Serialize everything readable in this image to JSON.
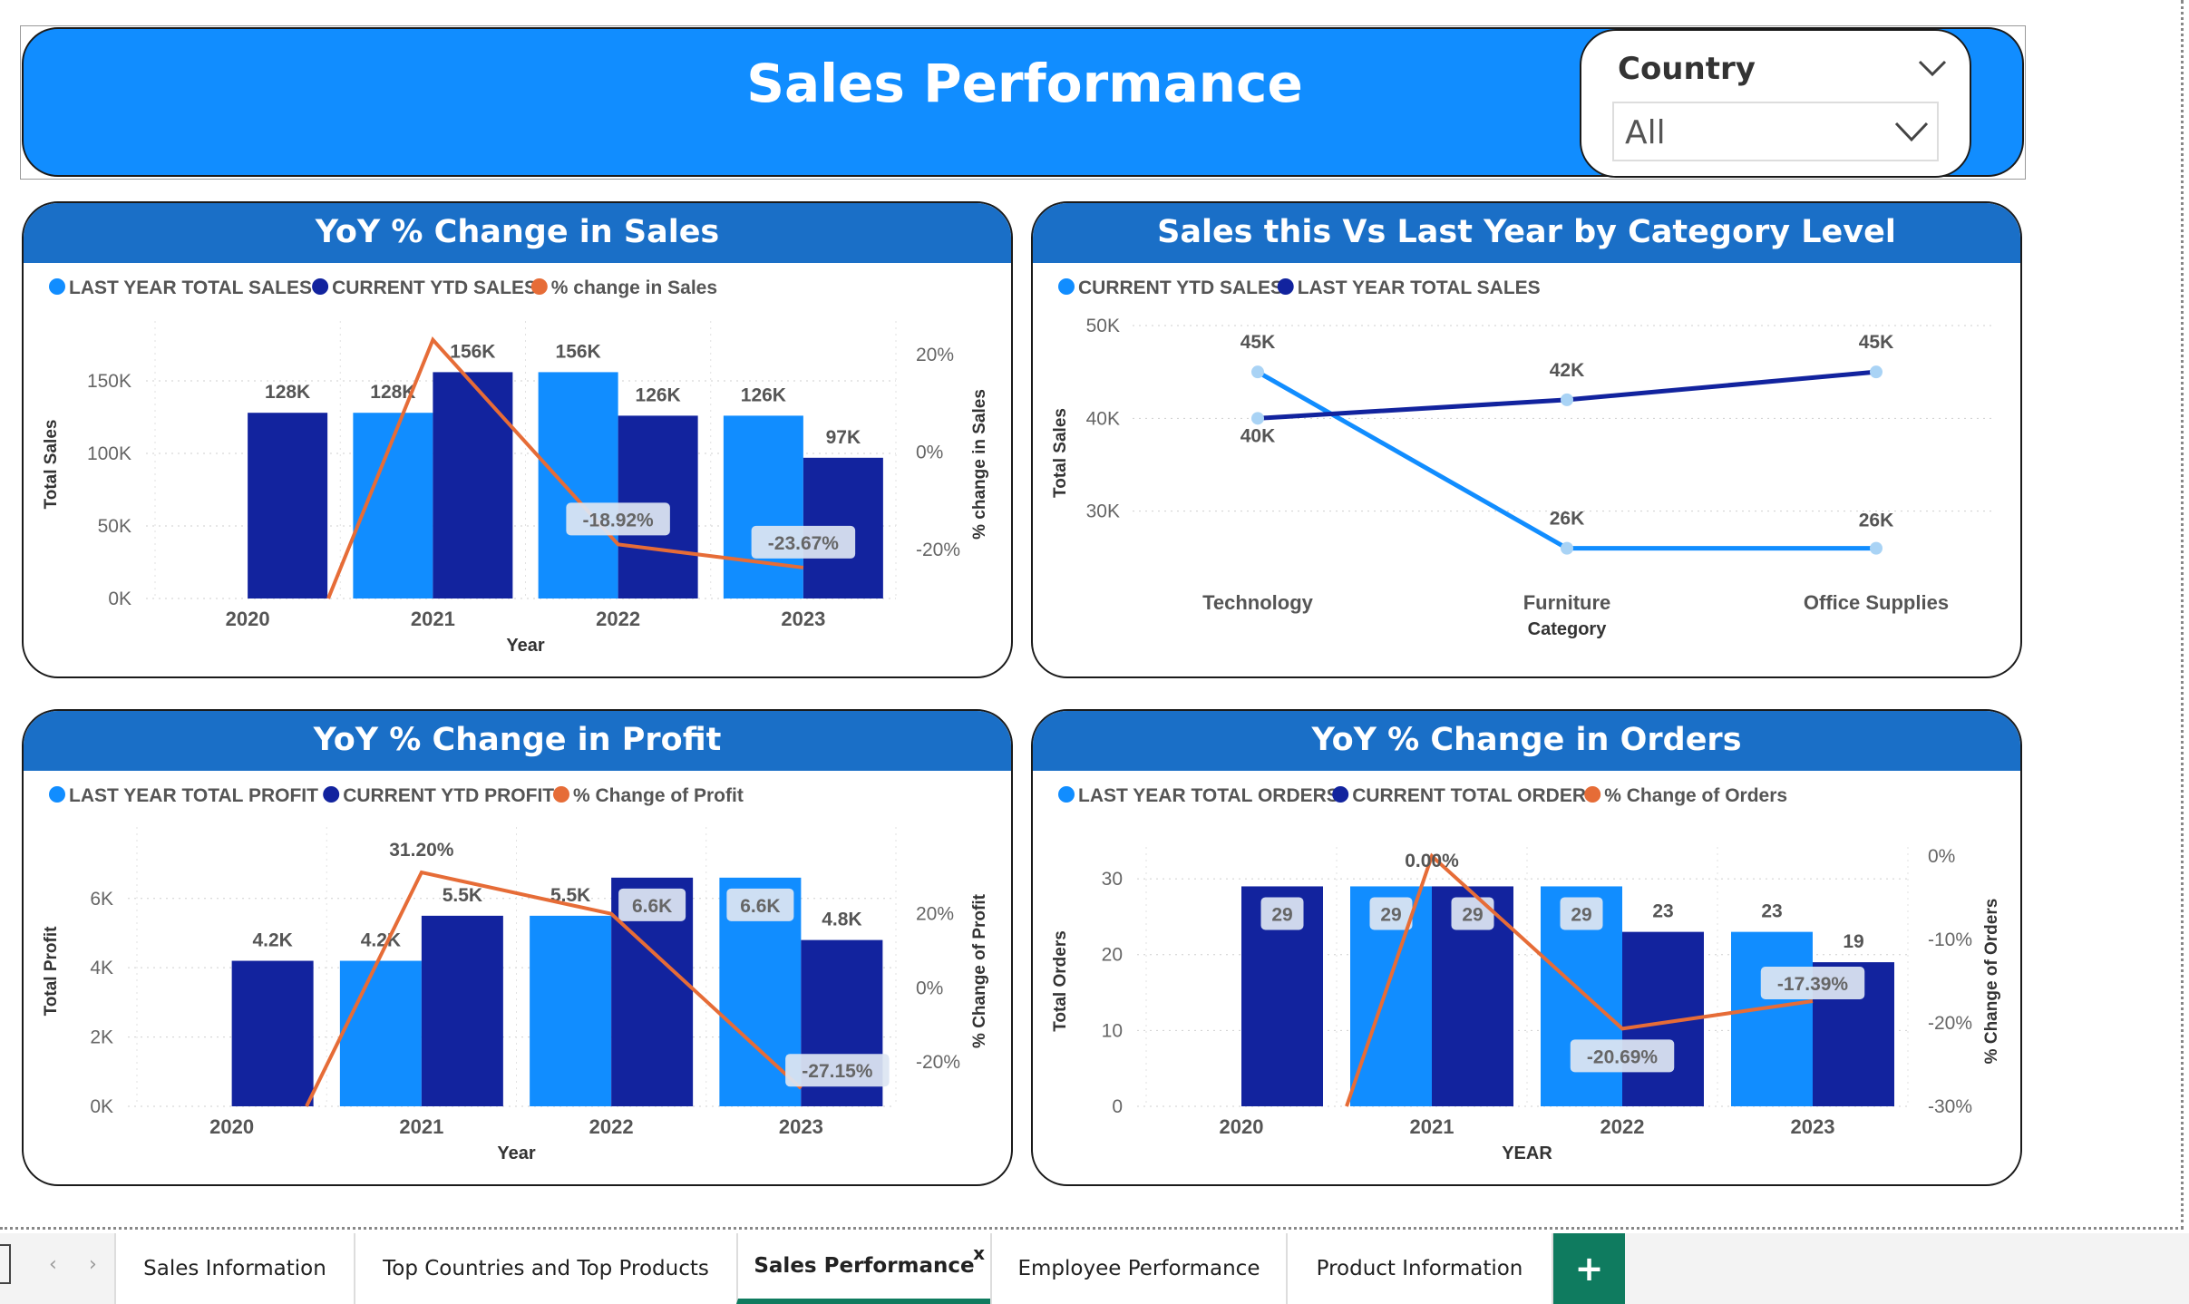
{
  "header": {
    "title": "Sales Performance"
  },
  "slicer": {
    "label": "Country",
    "value": "All"
  },
  "colors": {
    "light": "#118dff",
    "dark": "#12239e",
    "line": "#e66c37",
    "header": "#1a6fc7"
  },
  "cards": [
    {
      "title": "YoY % Change in Sales",
      "legend": [
        "LAST YEAR TOTAL SALES",
        "CURRENT YTD SALES",
        "% change in Sales"
      ],
      "ylabel": "Total Sales",
      "y2label": "% change in Sales",
      "xlabel": "Year"
    },
    {
      "title": "Sales this Vs Last Year by Category Level",
      "legend": [
        "CURRENT YTD SALES",
        "LAST YEAR TOTAL SALES"
      ],
      "ylabel": "Total Sales",
      "xlabel": "Category"
    },
    {
      "title": "YoY % Change in Profit",
      "legend": [
        "LAST YEAR TOTAL PROFIT",
        "CURRENT YTD PROFIT",
        "% Change of Profit"
      ],
      "ylabel": "Total Profit",
      "y2label": "% Change of Profit",
      "xlabel": "Year"
    },
    {
      "title": "YoY % Change in Orders",
      "legend": [
        "LAST YEAR TOTAL ORDERS",
        "CURRENT TOTAL ORDERS",
        "% Change of Orders"
      ],
      "ylabel": "Total Orders",
      "y2label": "% Change of Orders",
      "xlabel": "YEAR"
    }
  ],
  "chart_data": [
    {
      "type": "bar",
      "categories": [
        "2020",
        "2021",
        "2022",
        "2023"
      ],
      "series": [
        {
          "name": "LAST YEAR TOTAL SALES",
          "values": [
            null,
            128000,
            156000,
            126000
          ],
          "labels": [
            "",
            "128K",
            "156K",
            "126K"
          ]
        },
        {
          "name": "CURRENT YTD SALES",
          "values": [
            128000,
            156000,
            126000,
            97000
          ],
          "labels": [
            "128K",
            "156K",
            "126K",
            "97K"
          ]
        },
        {
          "name": "% change in Sales",
          "values": [
            -60,
            23,
            -18.92,
            -23.67
          ],
          "labels": [
            "",
            "",
            "-18.92%",
            "-23.67%"
          ]
        }
      ],
      "yticks": [
        "0K",
        "50K",
        "100K",
        "150K"
      ],
      "ylim": [
        0,
        185000
      ],
      "y2ticks": [
        "-20%",
        "0%",
        "20%"
      ],
      "y2lim": [
        -30,
        25
      ]
    },
    {
      "type": "line",
      "categories": [
        "Technology",
        "Furniture",
        "Office Supplies"
      ],
      "series": [
        {
          "name": "CURRENT YTD SALES",
          "values": [
            45000,
            26000,
            26000
          ],
          "labels": [
            "45K",
            "26K",
            "26K"
          ]
        },
        {
          "name": "LAST YEAR TOTAL SALES",
          "values": [
            40000,
            42000,
            45000
          ],
          "labels": [
            "40K",
            "42K",
            "45K"
          ]
        }
      ],
      "yticks": [
        "30K",
        "40K",
        "50K"
      ],
      "ylim": [
        25000,
        50000
      ]
    },
    {
      "type": "bar",
      "categories": [
        "2020",
        "2021",
        "2022",
        "2023"
      ],
      "series": [
        {
          "name": "LAST YEAR TOTAL PROFIT",
          "values": [
            null,
            4200,
            5500,
            6600
          ],
          "labels": [
            "",
            "4.2K",
            "5.5K",
            "6.6K"
          ]
        },
        {
          "name": "CURRENT YTD PROFIT",
          "values": [
            4200,
            5500,
            6600,
            4800
          ],
          "labels": [
            "4.2K",
            "5.5K",
            "6.6K",
            "4.8K"
          ]
        },
        {
          "name": "% Change of Profit",
          "values": [
            -60,
            31.2,
            20,
            -27.15
          ],
          "labels": [
            "",
            "31.20%",
            "",
            "-27.15%"
          ]
        }
      ],
      "yticks": [
        "0K",
        "2K",
        "4K",
        "6K"
      ],
      "ylim": [
        0,
        7800
      ],
      "y2ticks": [
        "-20%",
        "0%",
        "20%"
      ],
      "y2lim": [
        -32,
        41
      ]
    },
    {
      "type": "bar",
      "categories": [
        "2020",
        "2021",
        "2022",
        "2023"
      ],
      "series": [
        {
          "name": "LAST YEAR TOTAL ORDERS",
          "values": [
            null,
            29,
            29,
            23
          ],
          "labels": [
            "",
            "29",
            "29",
            "23"
          ]
        },
        {
          "name": "CURRENT TOTAL ORDERS",
          "values": [
            29,
            29,
            23,
            19
          ],
          "labels": [
            "29",
            "29",
            "23",
            "19"
          ]
        },
        {
          "name": "% Change of Orders",
          "values": [
            -30,
            0,
            -20.69,
            -17.39
          ],
          "labels": [
            "",
            "0.00%",
            "-20.69%",
            "-17.39%"
          ]
        }
      ],
      "yticks": [
        "0",
        "10",
        "20",
        "30"
      ],
      "ylim": [
        0,
        33
      ],
      "y2ticks": [
        "-30%",
        "-20%",
        "-10%",
        "0%"
      ],
      "y2lim": [
        -30,
        0
      ]
    }
  ],
  "tabs": [
    {
      "label": "Sales Information"
    },
    {
      "label": "Top Countries and Top Products"
    },
    {
      "label": "Sales Performance",
      "active": true,
      "close": "x"
    },
    {
      "label": "Employee Performance"
    },
    {
      "label": "Product Information"
    }
  ],
  "add_tab": "+"
}
